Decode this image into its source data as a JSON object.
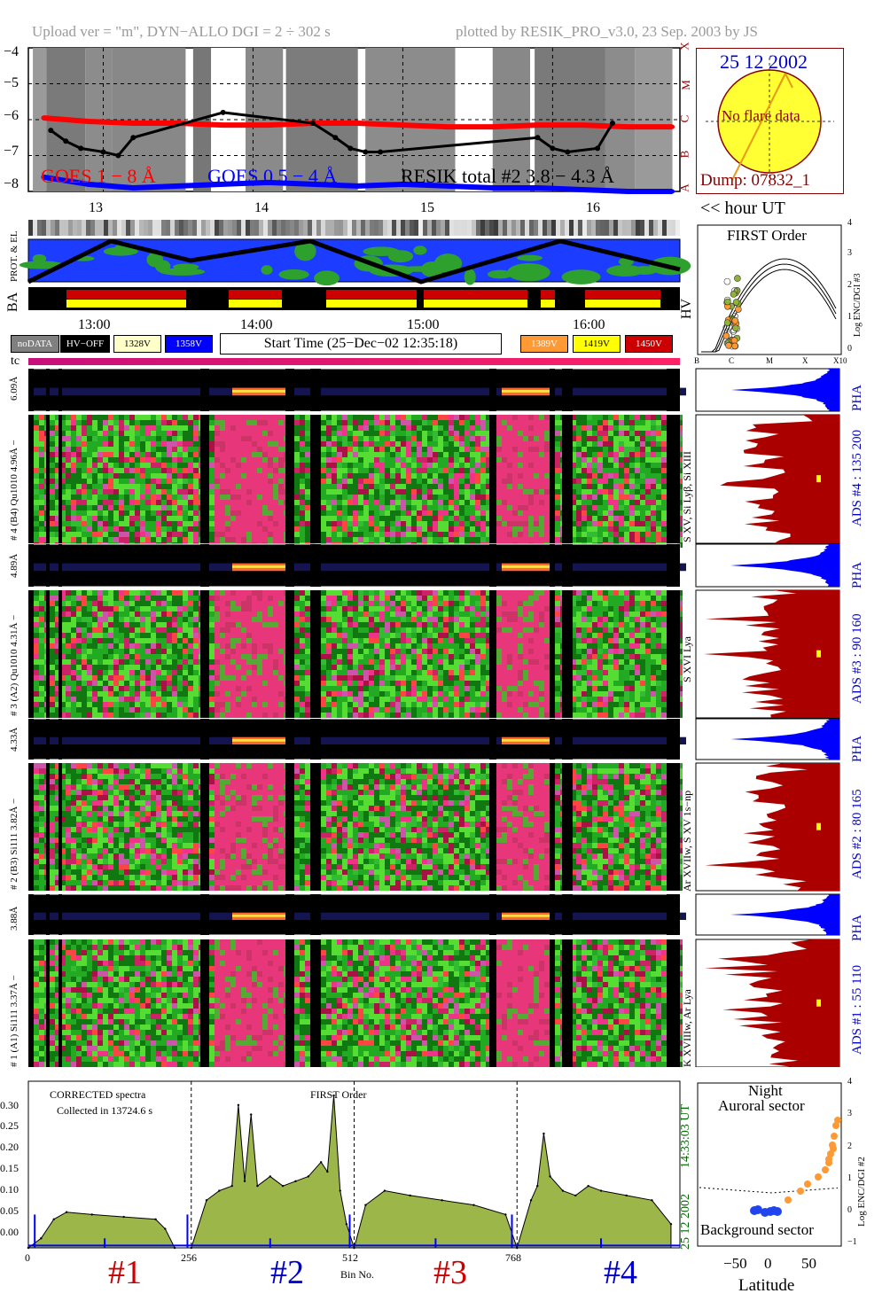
{
  "header": {
    "left": "Upload ver = \"m\", DYN−ALLO DGI =   2 ÷ 302 s",
    "right": "plotted by RESIK_PRO_v3.0, 23 Sep. 2003 by JS"
  },
  "goes": {
    "y_ticks": [
      "−4",
      "−5",
      "−6",
      "−7",
      "−8"
    ],
    "class_labels": [
      "X",
      "M",
      "C",
      "B",
      "A"
    ],
    "legend_goes1": "GOES 1 − 8 Å",
    "legend_goes05": "GOES 0.5 − 4 Å",
    "legend_resik": "RESIK total #2  3.8 − 4.3 Å"
  },
  "sun": {
    "date": "25 12 2002",
    "note": "No flare data",
    "dump": "Dump: 07832_1"
  },
  "hours": {
    "top_labels": [
      "13",
      "14",
      "15",
      "16"
    ],
    "hour_ut": "<< hour UT",
    "mid_labels": [
      "13:00",
      "14:00",
      "15:00",
      "16:00"
    ]
  },
  "orbit_labels": {
    "prot_el": "PROT. & EL",
    "ba": "BA",
    "hv": "HV",
    "tc": "tc"
  },
  "first_order_plot": {
    "title": "FIRST Order",
    "ylabel": "Log ENC/DGI #3",
    "x_ticks": [
      "B",
      "C",
      "M",
      "X",
      "X10"
    ],
    "y_ticks": [
      "0",
      "1",
      "2",
      "3",
      "4"
    ]
  },
  "legend": {
    "start_time": "Start Time (25−Dec−02 12:35:18)",
    "items": [
      {
        "label": "noDATA",
        "bg": "#808080",
        "fg": "#ffffff"
      },
      {
        "label": "HV−OFF",
        "bg": "#000000",
        "fg": "#ffffff"
      },
      {
        "label": "1328V",
        "bg": "#ffffc8",
        "fg": "#000000"
      },
      {
        "label": "1358V",
        "bg": "#0000ff",
        "fg": "#ffffff"
      },
      {
        "label": "1389V",
        "bg": "#ff9933",
        "fg": "#ffffff"
      },
      {
        "label": "1419V",
        "bg": "#ffff00",
        "fg": "#000000"
      },
      {
        "label": "1450V",
        "bg": "#cc0000",
        "fg": "#ffffff"
      }
    ]
  },
  "channels": [
    {
      "pha_label": "6.09Å",
      "main_label": "# 4 (B4) Qu1010 4.96Å −",
      "line_id": "S XV, Si Lyβ, Si XIII",
      "ads": "ADS #4 :   135 200",
      "pha": "PHA"
    },
    {
      "pha_label": "4.89Å",
      "main_label": "# 3 (A2) Qu1010 4.31Å −",
      "line_id": "S XVI Lya",
      "ads": "ADS #3 :   90 160",
      "pha": "PHA"
    },
    {
      "pha_label": "4.33Å",
      "main_label": "# 2 (B3) Si111 3.82Å −",
      "line_id": "Ar XVIIw, S XV 1s−np",
      "ads": "ADS #2 :   80 165",
      "pha": "PHA"
    },
    {
      "pha_label": "3.88Å",
      "main_label": "# 1 (A1) Si111 3.37Å −",
      "line_id": "K XVIIIw, Ar Lya",
      "ads": "ADS #1 :   55 110",
      "pha": "PHA"
    }
  ],
  "spectrum": {
    "note1": "CORRECTED spectra",
    "note2": "Collected in 13724.6 s",
    "order": "FIRST Order",
    "y_ticks": [
      "0.30",
      "0.25",
      "0.20",
      "0.15",
      "0.10",
      "0.05",
      "0.00"
    ],
    "x_ticks": [
      "0",
      "256",
      "512",
      "768"
    ],
    "xlabel": "Bin No.",
    "time": "14:33:03 UT",
    "date": "25 12 2002",
    "detectors": [
      {
        "label": "#1",
        "color": "#cc0000"
      },
      {
        "label": "#2",
        "color": "#0000cc"
      },
      {
        "label": "#3",
        "color": "#cc0000"
      },
      {
        "label": "#4",
        "color": "#0000cc"
      }
    ]
  },
  "latitude_plot": {
    "night": "Night",
    "auroral": "Auroral sector",
    "background": "Background sector",
    "xlabel": "Latitude",
    "ylabel": "Log ENC/DGI #2",
    "x_ticks": [
      "−50",
      "0",
      "50"
    ],
    "y_ticks": [
      "4",
      "3",
      "2",
      "1",
      "0",
      "−1"
    ]
  },
  "chart_data": [
    {
      "type": "line",
      "title": "",
      "xlabel": "",
      "ylabel": "",
      "x_ticks": [
        "13",
        "14",
        "15",
        "16"
      ],
      "ylim": [
        -8,
        -4
      ],
      "series": [
        {
          "name": "GOES 1 − 8 Å",
          "color": "#ff0000",
          "x": [
            12.6,
            12.9,
            13.2,
            13.5,
            13.8,
            14.1,
            14.4,
            14.7,
            15.0,
            15.3,
            15.6,
            15.9,
            16.2,
            16.5,
            16.8
          ],
          "y": [
            -5.95,
            -6.05,
            -6.1,
            -6.1,
            -6.15,
            -6.15,
            -6.1,
            -6.1,
            -6.15,
            -6.2,
            -6.2,
            -6.15,
            -6.15,
            -6.2,
            -6.2
          ]
        },
        {
          "name": "GOES 0.5 − 4 Å",
          "color": "#0000ff",
          "x": [
            12.6,
            12.9,
            13.2,
            13.5,
            13.8,
            14.1,
            14.4,
            14.7,
            15.0,
            15.3,
            15.6,
            15.9,
            16.2,
            16.5,
            16.8
          ],
          "y": [
            -7.6,
            -7.8,
            -7.9,
            -7.85,
            -7.8,
            -7.75,
            -7.8,
            -7.85,
            -7.8,
            -7.85,
            -7.9,
            -7.9,
            -7.95,
            -8.0,
            -8.0
          ]
        },
        {
          "name": "RESIK total #2  3.8 − 4.3 Å",
          "color": "#000000",
          "x": [
            12.65,
            12.75,
            12.85,
            13.0,
            13.1,
            13.2,
            13.8,
            14.4,
            14.55,
            14.65,
            14.75,
            14.85,
            15.9,
            16.0,
            16.1,
            16.3,
            16.4
          ],
          "y": [
            -6.3,
            -6.6,
            -6.8,
            -6.9,
            -7.0,
            -6.5,
            -5.8,
            -6.1,
            -6.5,
            -6.8,
            -6.9,
            -6.9,
            -6.5,
            -6.8,
            -6.9,
            -6.8,
            -6.1
          ]
        }
      ]
    },
    {
      "type": "area",
      "title": "",
      "xlabel": "Bin No.",
      "ylabel": "",
      "xlim": [
        0,
        1024
      ],
      "ylim": [
        0,
        0.35
      ],
      "x": [
        0,
        20,
        40,
        60,
        100,
        150,
        200,
        215,
        230,
        256,
        280,
        300,
        320,
        330,
        340,
        350,
        360,
        380,
        400,
        420,
        440,
        460,
        470,
        480,
        490,
        500,
        512,
        530,
        560,
        600,
        650,
        700,
        750,
        768,
        790,
        800,
        810,
        820,
        840,
        860,
        880,
        900,
        940,
        980,
        1010
      ],
      "y": [
        0.0,
        0.02,
        0.06,
        0.075,
        0.07,
        0.065,
        0.06,
        0.04,
        0.0,
        0.0,
        0.1,
        0.12,
        0.13,
        0.3,
        0.14,
        0.28,
        0.13,
        0.15,
        0.13,
        0.14,
        0.15,
        0.18,
        0.16,
        0.32,
        0.12,
        0.05,
        0.0,
        0.09,
        0.12,
        0.11,
        0.1,
        0.09,
        0.07,
        0.0,
        0.1,
        0.13,
        0.24,
        0.15,
        0.12,
        0.11,
        0.13,
        0.12,
        0.11,
        0.1,
        0.05
      ],
      "fill": "#9db64a"
    }
  ]
}
